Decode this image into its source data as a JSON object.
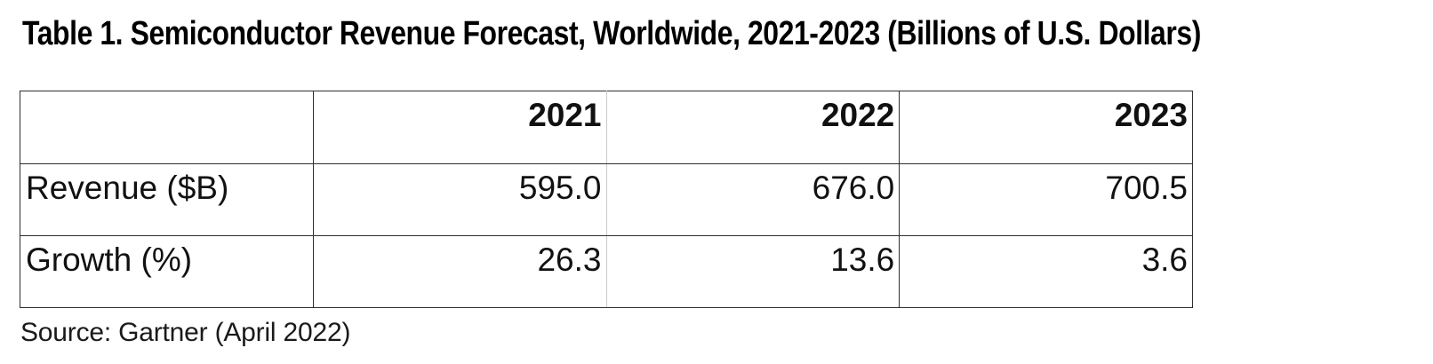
{
  "page": {
    "title": "Table 1. Semiconductor Revenue Forecast, Worldwide, 2021-2023 (Billions of U.S. Dollars)",
    "source": "Source: Gartner (April 2022)"
  },
  "table": {
    "columns": [
      "",
      "2021",
      "2022",
      "2023"
    ],
    "rows": [
      {
        "label": "Revenue ($B)",
        "values": [
          "595.0",
          "676.0",
          "700.5"
        ]
      },
      {
        "label": "Growth (%)",
        "values": [
          "26.3",
          "13.6",
          "3.6"
        ]
      }
    ]
  },
  "colors": {
    "background": "#ffffff",
    "text": "#111111",
    "border_dark": "#2f2f2f",
    "border_light": "#c9c9c9"
  },
  "chart_data": {
    "type": "table",
    "title": "Table 1. Semiconductor Revenue Forecast, Worldwide, 2021-2023 (Billions of U.S. Dollars)",
    "columns": [
      "",
      "2021",
      "2022",
      "2023"
    ],
    "rows": [
      [
        "Revenue ($B)",
        595.0,
        676.0,
        700.5
      ],
      [
        "Growth (%)",
        26.3,
        13.6,
        3.6
      ]
    ],
    "series": [
      {
        "name": "Revenue ($B)",
        "x": [
          2021,
          2022,
          2023
        ],
        "values": [
          595.0,
          676.0,
          700.5
        ]
      },
      {
        "name": "Growth (%)",
        "x": [
          2021,
          2022,
          2023
        ],
        "values": [
          26.3,
          13.6,
          3.6
        ]
      }
    ],
    "source": "Source: Gartner (April 2022)"
  }
}
